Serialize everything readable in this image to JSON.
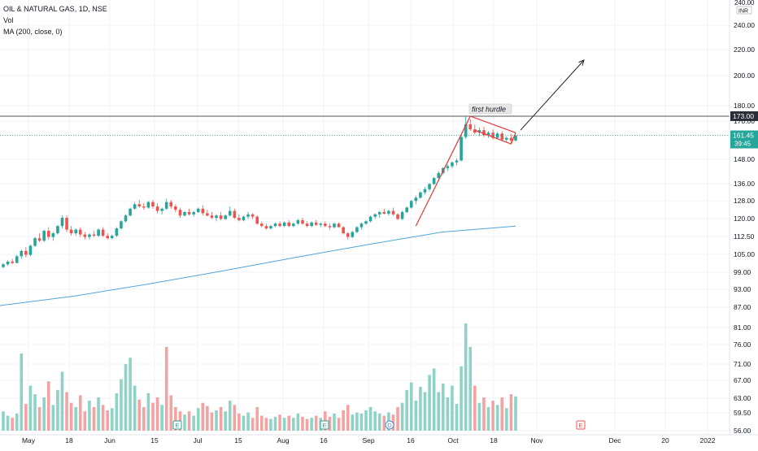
{
  "header": {
    "symbol_line": "OIL & NATURAL GAS, 1D, NSE",
    "volume_label": "Vol",
    "ma_label": "MA (200, close, 0)"
  },
  "currency_top": "INR",
  "currency_top_partial": "240.00",
  "colors": {
    "up": "#26a69a",
    "down": "#ef5350",
    "vol_up": "#8fd3c7",
    "vol_down": "#f4a3a3",
    "ma": "#4fa5d8",
    "grid": "#f0f3fa",
    "resistance": "#555555",
    "flag": "#e53935",
    "arrow": "#222222"
  },
  "annotations": {
    "first_hurdle": "first hurdle"
  },
  "price_labels": {
    "resistance": "173.00",
    "last_price": "161.45",
    "countdown": "39:45"
  },
  "event_markers": [
    {
      "letter": "E"
    },
    {
      "letter": "E"
    },
    {
      "letter": "D"
    },
    {
      "letter": "E"
    }
  ],
  "chart_data": {
    "type": "candlestick",
    "y_scale": "log",
    "price_ticks": [
      "240.00",
      "220.00",
      "200.00",
      "180.00",
      "170.00",
      "148.00",
      "136.00",
      "128.00",
      "120.00",
      "112.50",
      "105.00",
      "99.00",
      "93.00",
      "87.00",
      "81.00",
      "76.00",
      "71.00",
      "67.00",
      "63.00",
      "59.50",
      "56.00"
    ],
    "x_tick_labels": [
      "May",
      "18",
      "Jun",
      "15",
      "Jul",
      "15",
      "Aug",
      "16",
      "Sep",
      "16",
      "Oct",
      "18",
      "Nov",
      "Dec",
      "20",
      "2022"
    ],
    "resistance_level": 173.0,
    "last_price": 161.45,
    "ma_period": 200,
    "ohlc": [
      [
        100.5,
        102.0,
        100.0,
        101.5
      ],
      [
        101.5,
        103.0,
        101.0,
        102.5
      ],
      [
        102.5,
        103.5,
        101.5,
        102.0
      ],
      [
        102.0,
        105.0,
        101.8,
        104.5
      ],
      [
        104.5,
        107.0,
        103.5,
        106.5
      ],
      [
        106.5,
        108.0,
        104.0,
        105.0
      ],
      [
        105.0,
        109.0,
        104.5,
        108.5
      ],
      [
        108.5,
        112.0,
        108.0,
        111.5
      ],
      [
        111.5,
        113.5,
        110.0,
        110.5
      ],
      [
        110.5,
        115.0,
        110.0,
        114.5
      ],
      [
        114.5,
        116.0,
        111.0,
        112.0
      ],
      [
        112.0,
        114.0,
        110.5,
        113.5
      ],
      [
        113.5,
        117.0,
        113.0,
        116.5
      ],
      [
        116.5,
        121.0,
        115.5,
        120.0
      ],
      [
        120.0,
        121.0,
        114.0,
        115.0
      ],
      [
        115.0,
        116.5,
        112.5,
        113.5
      ],
      [
        113.5,
        115.5,
        112.5,
        115.0
      ],
      [
        115.0,
        116.0,
        112.0,
        113.0
      ],
      [
        113.0,
        114.0,
        111.0,
        112.0
      ],
      [
        112.0,
        113.5,
        111.0,
        113.0
      ],
      [
        113.0,
        114.5,
        112.0,
        112.5
      ],
      [
        112.5,
        115.5,
        112.0,
        115.0
      ],
      [
        115.0,
        116.0,
        112.0,
        112.5
      ],
      [
        112.5,
        113.5,
        111.0,
        111.5
      ],
      [
        111.5,
        113.0,
        111.0,
        112.5
      ],
      [
        112.5,
        116.0,
        112.0,
        115.5
      ],
      [
        115.5,
        119.0,
        115.0,
        118.5
      ],
      [
        118.5,
        121.5,
        118.0,
        121.0
      ],
      [
        121.0,
        124.5,
        120.5,
        124.0
      ],
      [
        124.0,
        127.0,
        123.5,
        126.0
      ],
      [
        126.0,
        128.0,
        124.5,
        125.0
      ],
      [
        125.0,
        126.5,
        123.5,
        124.5
      ],
      [
        124.5,
        127.5,
        124.0,
        127.0
      ],
      [
        127.0,
        128.0,
        124.0,
        125.0
      ],
      [
        125.0,
        126.5,
        122.0,
        123.0
      ],
      [
        123.0,
        124.5,
        121.5,
        124.0
      ],
      [
        124.0,
        128.5,
        123.5,
        127.0
      ],
      [
        127.0,
        128.0,
        124.0,
        125.0
      ],
      [
        125.0,
        126.0,
        122.5,
        123.5
      ],
      [
        123.5,
        124.5,
        120.0,
        121.0
      ],
      [
        121.0,
        123.0,
        120.5,
        122.5
      ],
      [
        122.5,
        124.0,
        121.0,
        121.5
      ],
      [
        121.5,
        123.0,
        120.5,
        122.5
      ],
      [
        122.5,
        124.5,
        122.0,
        124.0
      ],
      [
        124.0,
        125.5,
        121.0,
        122.0
      ],
      [
        122.0,
        123.5,
        120.5,
        121.0
      ],
      [
        121.0,
        122.5,
        119.5,
        120.0
      ],
      [
        120.0,
        121.5,
        118.5,
        121.0
      ],
      [
        121.0,
        122.5,
        119.0,
        119.5
      ],
      [
        119.5,
        121.5,
        119.0,
        121.0
      ],
      [
        121.0,
        125.0,
        120.5,
        123.0
      ],
      [
        123.0,
        124.0,
        119.5,
        120.0
      ],
      [
        120.0,
        121.5,
        118.5,
        119.0
      ],
      [
        119.0,
        121.0,
        118.5,
        120.5
      ],
      [
        120.5,
        122.5,
        119.5,
        121.5
      ],
      [
        121.5,
        122.0,
        119.5,
        120.5
      ],
      [
        120.5,
        121.0,
        117.0,
        117.5
      ],
      [
        117.5,
        118.5,
        116.0,
        116.5
      ],
      [
        116.5,
        117.5,
        115.0,
        115.5
      ],
      [
        115.5,
        117.0,
        115.0,
        116.5
      ],
      [
        116.5,
        118.0,
        116.0,
        117.5
      ],
      [
        117.5,
        118.5,
        116.0,
        116.5
      ],
      [
        116.5,
        118.5,
        116.0,
        118.0
      ],
      [
        118.0,
        119.0,
        116.0,
        116.5
      ],
      [
        116.5,
        118.0,
        116.0,
        117.5
      ],
      [
        117.5,
        119.5,
        117.0,
        119.0
      ],
      [
        119.0,
        120.0,
        117.0,
        117.5
      ],
      [
        117.5,
        118.5,
        116.0,
        116.5
      ],
      [
        116.5,
        118.5,
        116.0,
        118.0
      ],
      [
        118.0,
        119.0,
        116.5,
        117.0
      ],
      [
        117.0,
        118.0,
        116.0,
        117.5
      ],
      [
        117.5,
        118.5,
        116.0,
        116.5
      ],
      [
        116.5,
        117.5,
        115.0,
        116.0
      ],
      [
        116.0,
        118.0,
        115.5,
        117.5
      ],
      [
        117.5,
        118.0,
        116.0,
        116.0
      ],
      [
        116.0,
        116.5,
        113.0,
        113.5
      ],
      [
        113.5,
        114.0,
        111.0,
        112.0
      ],
      [
        112.0,
        114.5,
        111.5,
        114.0
      ],
      [
        114.0,
        116.5,
        113.5,
        116.0
      ],
      [
        116.0,
        118.0,
        115.0,
        117.5
      ],
      [
        117.5,
        119.0,
        117.0,
        118.5
      ],
      [
        118.5,
        121.0,
        118.0,
        120.5
      ],
      [
        120.5,
        122.0,
        119.5,
        121.5
      ],
      [
        121.5,
        123.0,
        120.0,
        122.5
      ],
      [
        122.5,
        124.0,
        121.5,
        121.8
      ],
      [
        121.8,
        123.5,
        121.0,
        123.0
      ],
      [
        123.0,
        124.5,
        121.0,
        121.5
      ],
      [
        121.5,
        122.0,
        119.0,
        119.5
      ],
      [
        119.5,
        123.0,
        119.0,
        122.5
      ],
      [
        122.5,
        125.0,
        122.0,
        124.5
      ],
      [
        124.5,
        128.0,
        124.0,
        127.5
      ],
      [
        127.5,
        130.0,
        126.0,
        129.0
      ],
      [
        129.0,
        132.0,
        128.5,
        131.5
      ],
      [
        131.5,
        134.0,
        130.5,
        133.0
      ],
      [
        133.0,
        136.0,
        132.0,
        135.5
      ],
      [
        135.5,
        139.0,
        135.0,
        138.5
      ],
      [
        138.5,
        142.0,
        138.0,
        141.0
      ],
      [
        141.0,
        144.0,
        140.0,
        143.5
      ],
      [
        143.5,
        145.5,
        142.0,
        144.5
      ],
      [
        144.5,
        147.0,
        143.5,
        146.5
      ],
      [
        146.5,
        148.5,
        145.0,
        147.5
      ],
      [
        147.5,
        162.0,
        147.0,
        160.5
      ],
      [
        160.5,
        173.0,
        159.5,
        168.0
      ],
      [
        168.0,
        171.0,
        164.0,
        165.0
      ],
      [
        165.0,
        168.0,
        162.0,
        163.0
      ],
      [
        163.0,
        166.0,
        161.0,
        164.5
      ],
      [
        164.5,
        166.5,
        160.5,
        161.5
      ],
      [
        161.5,
        164.0,
        160.0,
        163.0
      ],
      [
        163.0,
        165.0,
        159.0,
        160.0
      ],
      [
        160.0,
        163.5,
        159.5,
        162.5
      ],
      [
        162.5,
        164.0,
        158.0,
        159.0
      ],
      [
        159.0,
        161.0,
        157.5,
        160.0
      ],
      [
        160.0,
        162.0,
        157.0,
        158.5
      ],
      [
        158.5,
        161.5,
        158.0,
        161.45
      ]
    ],
    "volume": [
      {
        "v": 0.18,
        "up": true
      },
      {
        "v": 0.14,
        "up": true
      },
      {
        "v": 0.12,
        "up": false
      },
      {
        "v": 0.16,
        "up": true
      },
      {
        "v": 0.72,
        "up": true
      },
      {
        "v": 0.25,
        "up": false
      },
      {
        "v": 0.42,
        "up": true
      },
      {
        "v": 0.34,
        "up": true
      },
      {
        "v": 0.22,
        "up": false
      },
      {
        "v": 0.31,
        "up": true
      },
      {
        "v": 0.46,
        "up": false
      },
      {
        "v": 0.24,
        "up": true
      },
      {
        "v": 0.38,
        "up": true
      },
      {
        "v": 0.55,
        "up": true
      },
      {
        "v": 0.36,
        "up": false
      },
      {
        "v": 0.26,
        "up": false
      },
      {
        "v": 0.22,
        "up": true
      },
      {
        "v": 0.33,
        "up": false
      },
      {
        "v": 0.18,
        "up": false
      },
      {
        "v": 0.28,
        "up": true
      },
      {
        "v": 0.22,
        "up": false
      },
      {
        "v": 0.31,
        "up": true
      },
      {
        "v": 0.24,
        "up": false
      },
      {
        "v": 0.19,
        "up": false
      },
      {
        "v": 0.21,
        "up": true
      },
      {
        "v": 0.35,
        "up": true
      },
      {
        "v": 0.48,
        "up": true
      },
      {
        "v": 0.62,
        "up": true
      },
      {
        "v": 0.68,
        "up": true
      },
      {
        "v": 0.42,
        "up": true
      },
      {
        "v": 0.29,
        "up": false
      },
      {
        "v": 0.22,
        "up": false
      },
      {
        "v": 0.35,
        "up": true
      },
      {
        "v": 0.26,
        "up": false
      },
      {
        "v": 0.31,
        "up": false
      },
      {
        "v": 0.24,
        "up": true
      },
      {
        "v": 0.78,
        "up": false
      },
      {
        "v": 0.33,
        "up": false
      },
      {
        "v": 0.22,
        "up": false
      },
      {
        "v": 0.18,
        "up": false
      },
      {
        "v": 0.15,
        "up": true
      },
      {
        "v": 0.18,
        "up": false
      },
      {
        "v": 0.14,
        "up": true
      },
      {
        "v": 0.21,
        "up": true
      },
      {
        "v": 0.26,
        "up": false
      },
      {
        "v": 0.23,
        "up": false
      },
      {
        "v": 0.17,
        "up": false
      },
      {
        "v": 0.19,
        "up": true
      },
      {
        "v": 0.22,
        "up": false
      },
      {
        "v": 0.18,
        "up": true
      },
      {
        "v": 0.28,
        "up": true
      },
      {
        "v": 0.24,
        "up": false
      },
      {
        "v": 0.16,
        "up": false
      },
      {
        "v": 0.14,
        "up": true
      },
      {
        "v": 0.17,
        "up": true
      },
      {
        "v": 0.12,
        "up": false
      },
      {
        "v": 0.22,
        "up": false
      },
      {
        "v": 0.14,
        "up": false
      },
      {
        "v": 0.12,
        "up": false
      },
      {
        "v": 0.11,
        "up": true
      },
      {
        "v": 0.13,
        "up": true
      },
      {
        "v": 0.15,
        "up": false
      },
      {
        "v": 0.12,
        "up": true
      },
      {
        "v": 0.14,
        "up": false
      },
      {
        "v": 0.12,
        "up": true
      },
      {
        "v": 0.16,
        "up": true
      },
      {
        "v": 0.13,
        "up": false
      },
      {
        "v": 0.11,
        "up": false
      },
      {
        "v": 0.12,
        "up": true
      },
      {
        "v": 0.14,
        "up": false
      },
      {
        "v": 0.12,
        "up": true
      },
      {
        "v": 0.18,
        "up": false
      },
      {
        "v": 0.13,
        "up": false
      },
      {
        "v": 0.16,
        "up": true
      },
      {
        "v": 0.12,
        "up": false
      },
      {
        "v": 0.19,
        "up": false
      },
      {
        "v": 0.24,
        "up": false
      },
      {
        "v": 0.15,
        "up": true
      },
      {
        "v": 0.17,
        "up": true
      },
      {
        "v": 0.16,
        "up": true
      },
      {
        "v": 0.19,
        "up": true
      },
      {
        "v": 0.22,
        "up": true
      },
      {
        "v": 0.18,
        "up": true
      },
      {
        "v": 0.16,
        "up": true
      },
      {
        "v": 0.14,
        "up": false
      },
      {
        "v": 0.17,
        "up": true
      },
      {
        "v": 0.15,
        "up": false
      },
      {
        "v": 0.22,
        "up": false
      },
      {
        "v": 0.26,
        "up": true
      },
      {
        "v": 0.38,
        "up": true
      },
      {
        "v": 0.45,
        "up": true
      },
      {
        "v": 0.28,
        "up": true
      },
      {
        "v": 0.41,
        "up": true
      },
      {
        "v": 0.36,
        "up": true
      },
      {
        "v": 0.52,
        "up": true
      },
      {
        "v": 0.58,
        "up": true
      },
      {
        "v": 0.36,
        "up": true
      },
      {
        "v": 0.44,
        "up": true
      },
      {
        "v": 0.31,
        "up": true
      },
      {
        "v": 0.42,
        "up": true
      },
      {
        "v": 0.25,
        "up": true
      },
      {
        "v": 0.6,
        "up": true
      },
      {
        "v": 1.0,
        "up": true
      },
      {
        "v": 0.78,
        "up": true
      },
      {
        "v": 0.42,
        "up": false
      },
      {
        "v": 0.26,
        "up": true
      },
      {
        "v": 0.31,
        "up": false
      },
      {
        "v": 0.22,
        "up": true
      },
      {
        "v": 0.28,
        "up": false
      },
      {
        "v": 0.24,
        "up": true
      },
      {
        "v": 0.31,
        "up": false
      },
      {
        "v": 0.21,
        "up": true
      },
      {
        "v": 0.34,
        "up": false
      },
      {
        "v": 0.32,
        "up": true
      }
    ],
    "ma_200": [
      87.5,
      90.5,
      94.5,
      99.0,
      104.0,
      109.0,
      114.0,
      116.5
    ]
  }
}
